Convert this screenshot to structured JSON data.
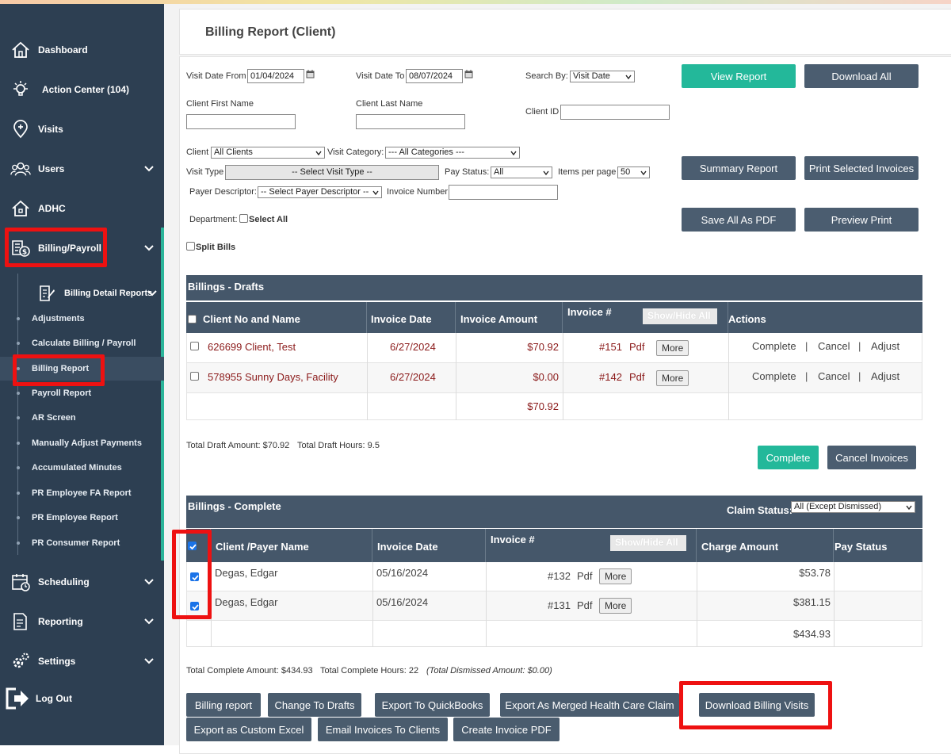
{
  "sidebar": {
    "items": [
      {
        "label": "Dashboard",
        "icon": "home-icon"
      },
      {
        "label": "Action Center (104)",
        "icon": "lightbulb-icon"
      },
      {
        "label": "Visits",
        "icon": "map-pin-icon"
      },
      {
        "label": "Users",
        "icon": "users-icon"
      },
      {
        "label": "ADHC",
        "icon": "building-icon"
      },
      {
        "label": "Billing/Payroll",
        "icon": "billing-icon"
      },
      {
        "label": "Scheduling",
        "icon": "calendar-icon"
      },
      {
        "label": "Reporting",
        "icon": "report-icon"
      },
      {
        "label": "Settings",
        "icon": "gear-icon"
      },
      {
        "label": "Log Out",
        "icon": "logout-icon"
      }
    ],
    "billing_detail_reports": "Billing Detail Reports",
    "sub_items": [
      "Adjustments",
      "Calculate Billing / Payroll",
      "Billing Report",
      "Payroll Report",
      "AR Screen",
      "Manually Adjust Payments",
      "Accumulated Minutes",
      "PR Employee FA Report",
      "PR Employee Report",
      "PR Consumer Report"
    ]
  },
  "page_title": "Billing Report (Client)",
  "filters": {
    "visit_date_from_label": "Visit Date From",
    "visit_date_from": "01/04/2024",
    "visit_date_to_label": "Visit Date To",
    "visit_date_to": "08/07/2024",
    "search_by_label": "Search By:",
    "search_by": "Visit Date",
    "client_first_name_label": "Client First Name",
    "client_last_name_label": "Client Last Name",
    "client_id_label": "Client ID",
    "client_label": "Client",
    "client": "All Clients",
    "visit_category_label": "Visit Category:",
    "visit_category": "--- All Categories ---",
    "visit_type_label": "Visit Type",
    "visit_type": "-- Select Visit Type --",
    "pay_status_label": "Pay Status:",
    "pay_status": "All",
    "items_per_page_label": "Items per page",
    "items_per_page": "50",
    "payer_descriptor_label": "Payer Descriptor:",
    "payer_descriptor": "-- Select Payer Descriptor --",
    "invoice_number_label": "Invoice Number",
    "department_label": "Department:",
    "select_all_label": "Select All",
    "split_bills_label": "Split Bills"
  },
  "buttons": {
    "view_report": "View Report",
    "download_all": "Download All",
    "summary_report": "Summary Report",
    "print_selected_invoices": "Print Selected Invoices",
    "save_all_as_pdf": "Save All As PDF",
    "preview_print": "Preview Print",
    "complete": "Complete",
    "cancel_invoices": "Cancel Invoices",
    "billing_report": "Billing report",
    "change_to_drafts": "Change To Drafts",
    "export_quickbooks": "Export To QuickBooks",
    "export_merged": "Export As Merged Health Care Claim",
    "download_billing_visits": "Download Billing Visits",
    "export_custom_excel": "Export as Custom Excel",
    "email_invoices": "Email Invoices To Clients",
    "create_invoice_pdf": "Create Invoice PDF"
  },
  "drafts": {
    "title": "Billings - Drafts",
    "headers": [
      "Client No and Name",
      "Invoice Date",
      "Invoice Amount",
      "Invoice #",
      "Actions"
    ],
    "show_hide": "Show/Hide All",
    "rows": [
      {
        "client": "626699 Client, Test",
        "date": "6/27/2024",
        "amount": "$70.92",
        "invoice": "#151",
        "pdf": "Pdf",
        "more": "More"
      },
      {
        "client": "578955 Sunny Days, Facility",
        "date": "6/27/2024",
        "amount": "$0.00",
        "invoice": "#142",
        "pdf": "Pdf",
        "more": "More"
      }
    ],
    "actions": [
      "Complete",
      "Cancel",
      "Adjust"
    ],
    "action_sep": "|",
    "total": "$70.92",
    "summary_amount": "Total Draft Amount: $70.92",
    "summary_hours": "Total Draft Hours: 9.5"
  },
  "complete": {
    "title": "Billings - Complete",
    "claim_status_label": "Claim Status:",
    "claim_status": "All (Except Dismissed)",
    "headers": [
      "Client /Payer Name",
      "Invoice Date",
      "Invoice #",
      "Charge Amount",
      "Pay Status"
    ],
    "show_hide": "Show/Hide All",
    "rows": [
      {
        "client": "Degas, Edgar",
        "date": "05/16/2024",
        "invoice": "#132",
        "pdf": "Pdf",
        "more": "More",
        "charge": "$53.78"
      },
      {
        "client": "Degas, Edgar",
        "date": "05/16/2024",
        "invoice": "#131",
        "pdf": "Pdf",
        "more": "More",
        "charge": "$381.15"
      }
    ],
    "total": "$434.93",
    "summary_amount": "Total Complete Amount: $434.93",
    "summary_hours": "Total Complete Hours: 22",
    "summary_dismissed": "(Total Dismissed Amount: $0.00)"
  },
  "colors": {
    "sidebar_bg": "#2d3f52",
    "accent_teal": "#23b89a",
    "button_slate": "#4b5d70",
    "table_header": "#45576a",
    "highlight_red": "#ee1111",
    "link_red": "#8b1a1a"
  }
}
